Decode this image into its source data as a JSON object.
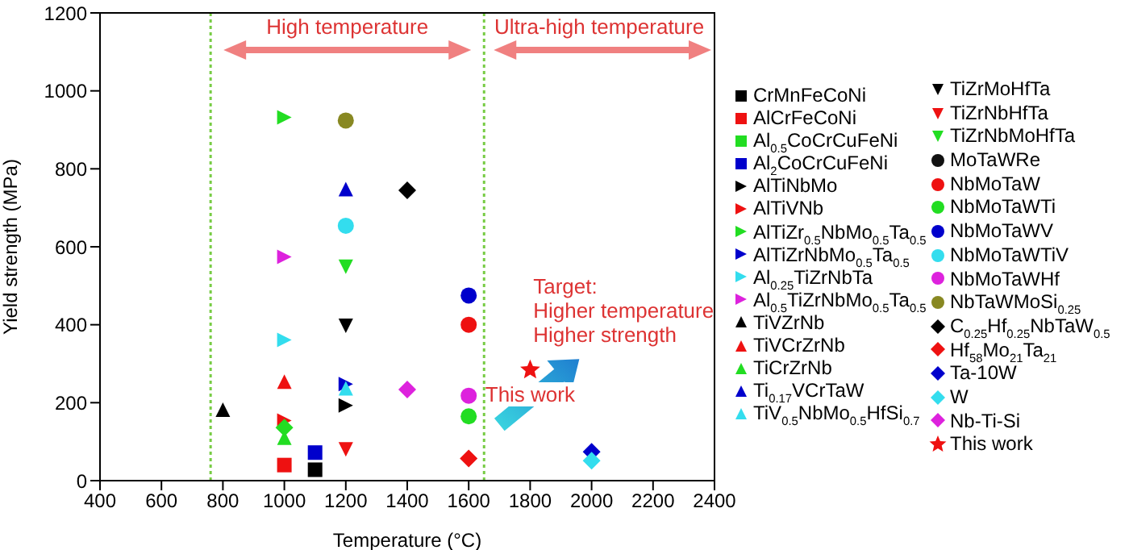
{
  "chart_data": {
    "type": "scatter",
    "xlabel": "Temperature (°C)",
    "ylabel": "Yield strength (MPa)",
    "xlim": [
      400,
      2400
    ],
    "xticks": [
      400,
      600,
      800,
      1000,
      1200,
      1400,
      1600,
      1800,
      2000,
      2200,
      2400
    ],
    "ylim": [
      0,
      1200
    ],
    "yticks": [
      0,
      200,
      400,
      600,
      800,
      1000,
      1200
    ],
    "legend": "right",
    "ref_lines": [
      {
        "axis": "x",
        "value": 760,
        "color": "#77cc44",
        "line_style": "dotted"
      },
      {
        "axis": "x",
        "value": 1650,
        "color": "#77cc44",
        "line_style": "dotted"
      }
    ],
    "annotations": [
      "High temperature",
      "Ultra-high temperature",
      "Target:\nHigher temperature\nHigher strength",
      {
        "text": "This work",
        "x": 1800,
        "y": 284
      }
    ],
    "series": [
      {
        "name": "CrMnFeCoNi",
        "marker": "square",
        "color": "#000000",
        "x": [
          1100
        ],
        "values": [
          28
        ]
      },
      {
        "name": "AlCrFeCoNi",
        "marker": "square",
        "color": "#ee1111",
        "x": [
          1000
        ],
        "values": [
          40
        ]
      },
      {
        "name": "Al$_{0.5}$CoCrCuFeNi",
        "marker": "square",
        "color": "#22dd22",
        "x": [
          null
        ],
        "values": [
          null
        ]
      },
      {
        "name": "Al$_{2}$CoCrCuFeNi",
        "marker": "square",
        "color": "#0000cc",
        "x": [
          1100
        ],
        "values": [
          72
        ]
      },
      {
        "name": "AlTiNbMo",
        "marker": "triangle-right",
        "color": "#000000",
        "x": [
          1200
        ],
        "values": [
          193
        ]
      },
      {
        "name": "AlTiVNb",
        "marker": "triangle-right",
        "color": "#ee1111",
        "x": [
          1000
        ],
        "values": [
          154
        ]
      },
      {
        "name": "AlTiZr$_{0.5}$NbMo$_{0.5}$Ta$_{0.5}$",
        "marker": "triangle-right",
        "color": "#22dd22",
        "x": [
          1000
        ],
        "values": [
          932
        ]
      },
      {
        "name": "AlTiZrNbMo$_{0.5}$Ta$_{0.5}$",
        "marker": "triangle-right",
        "color": "#0000cc",
        "x": [
          1200
        ],
        "values": [
          248
        ]
      },
      {
        "name": "Al$_{0.25}$TiZrNbTa",
        "marker": "triangle-right",
        "color": "#33ddee",
        "x": [
          1000
        ],
        "values": [
          361
        ]
      },
      {
        "name": "Al$_{0.5}$TiZrNbMo$_{0.5}$Ta$_{0.5}$",
        "marker": "triangle-right",
        "color": "#dd22dd",
        "x": [
          1000
        ],
        "values": [
          574
        ]
      },
      {
        "name": "TiVZrNb",
        "marker": "triangle",
        "color": "#000000",
        "x": [
          800
        ],
        "values": [
          182
        ]
      },
      {
        "name": "TiVCrZrNb",
        "marker": "triangle",
        "color": "#ee1111",
        "x": [
          1000
        ],
        "values": [
          254
        ]
      },
      {
        "name": "TiCrZrNb",
        "marker": "triangle",
        "color": "#22dd22",
        "x": [
          1000
        ],
        "values": [
          110
        ]
      },
      {
        "name": "Ti$_{0.17}$VCrTaW",
        "marker": "triangle",
        "color": "#0000cc",
        "x": [
          1200
        ],
        "values": [
          748
        ]
      },
      {
        "name": "TiV$_{0.5}$NbMo$_{0.5}$HfSi$_{0.7}$",
        "marker": "triangle",
        "color": "#33ddee",
        "x": [
          1200
        ],
        "values": [
          237
        ]
      },
      {
        "name": "TiZrMoHfTa",
        "marker": "triangle-down",
        "color": "#000000",
        "x": [
          1200
        ],
        "values": [
          397
        ]
      },
      {
        "name": "TiZrNbHfTa",
        "marker": "triangle-down",
        "color": "#ee1111",
        "x": [
          1200
        ],
        "values": [
          80
        ]
      },
      {
        "name": "TiZrNbMoHfTa",
        "marker": "triangle-down",
        "color": "#22dd22",
        "x": [
          1200
        ],
        "values": [
          549
        ]
      },
      {
        "name": "MoTaWRe",
        "marker": "circle",
        "color": "#111111",
        "x": [
          null
        ],
        "values": [
          null
        ]
      },
      {
        "name": "NbMoTaW",
        "marker": "circle",
        "color": "#ee1111",
        "x": [
          1600
        ],
        "values": [
          400
        ]
      },
      {
        "name": "NbMoTaWTi",
        "marker": "circle",
        "color": "#22dd22",
        "x": [
          1600
        ],
        "values": [
          165
        ]
      },
      {
        "name": "NbMoTaWV",
        "marker": "circle",
        "color": "#0000cc",
        "x": [
          1600
        ],
        "values": [
          475
        ]
      },
      {
        "name": "NbMoTaWTiV",
        "marker": "circle",
        "color": "#33ddee",
        "x": [
          1200
        ],
        "values": [
          654
        ]
      },
      {
        "name": "NbMoTaWHf",
        "marker": "circle",
        "color": "#dd22dd",
        "x": [
          1600
        ],
        "values": [
          218
        ]
      },
      {
        "name": "NbTaWMoSi$_{0.25}$",
        "marker": "circle",
        "color": "#888822",
        "x": [
          1200
        ],
        "values": [
          924
        ]
      },
      {
        "name": "C$_{0.25}$Hf$_{0.25}$NbTaW$_{0.5}$",
        "marker": "diamond",
        "color": "#000000",
        "x": [
          1400
        ],
        "values": [
          745
        ]
      },
      {
        "name": "Hf$_{58}$Mo$_{21}$Ta$_{21}$",
        "marker": "diamond",
        "color": "#ee1111",
        "x": [
          1600
        ],
        "values": [
          57
        ]
      },
      {
        "marker": "diamond",
        "color": "#22dd22",
        "x": [
          1000
        ],
        "values": [
          136
        ]
      },
      {
        "name": "Ta-10W",
        "marker": "diamond",
        "color": "#0000cc",
        "x": [
          2000
        ],
        "values": [
          74
        ]
      },
      {
        "name": "W",
        "marker": "diamond",
        "color": "#33ddee",
        "x": [
          2000
        ],
        "values": [
          51
        ]
      },
      {
        "name": "Nb-Ti-Si",
        "marker": "diamond",
        "color": "#dd22dd",
        "x": [
          1400
        ],
        "values": [
          234
        ]
      },
      {
        "name": "This work",
        "marker": "star",
        "color": "#ee1111",
        "x": [
          1800
        ],
        "values": [
          284
        ]
      }
    ]
  }
}
